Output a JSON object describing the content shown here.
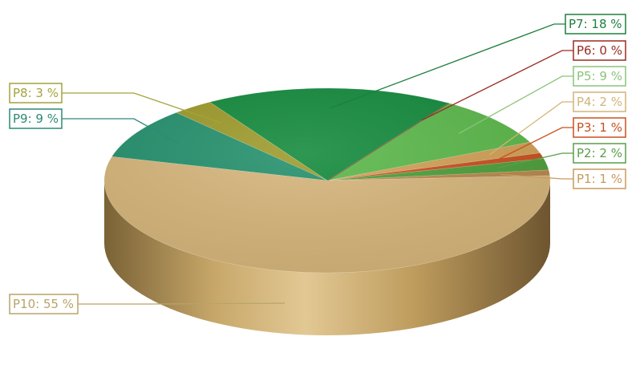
{
  "chart_data": {
    "type": "pie",
    "title": "",
    "style": "3d",
    "slices": [
      {
        "name": "P1",
        "value": 1,
        "label": "P1: 1 %",
        "color": "#b9874b",
        "border": "#c89a5c"
      },
      {
        "name": "P2",
        "value": 2,
        "label": "P2: 2 %",
        "color": "#4d9e3a",
        "border": "#5a9e48"
      },
      {
        "name": "P3",
        "value": 1,
        "label": "P3: 1 %",
        "color": "#c8501e",
        "border": "#c8501e"
      },
      {
        "name": "P4",
        "value": 2,
        "label": "P4: 2 %",
        "color": "#d2a056",
        "border": "#d2b478"
      },
      {
        "name": "P5",
        "value": 9,
        "label": "P5: 9 %",
        "color": "#5bb84a",
        "border": "#8bc47a"
      },
      {
        "name": "P6",
        "value": 0,
        "label": "P6: 0 %",
        "color": "#9b2a22",
        "border": "#9b2a22"
      },
      {
        "name": "P7",
        "value": 18,
        "label": "P7: 18 %",
        "color": "#128a3c",
        "border": "#1e7f3e"
      },
      {
        "name": "P8",
        "value": 3,
        "label": "P8: 3 %",
        "color": "#9d9a2a",
        "border": "#a4a23c"
      },
      {
        "name": "P9",
        "value": 9,
        "label": "P9: 9 %",
        "color": "#23906c",
        "border": "#2b8a76"
      },
      {
        "name": "P10",
        "value": 55,
        "label": "P10: 55 %",
        "color": "#d6b57a",
        "border": "#b8a46a"
      }
    ]
  }
}
